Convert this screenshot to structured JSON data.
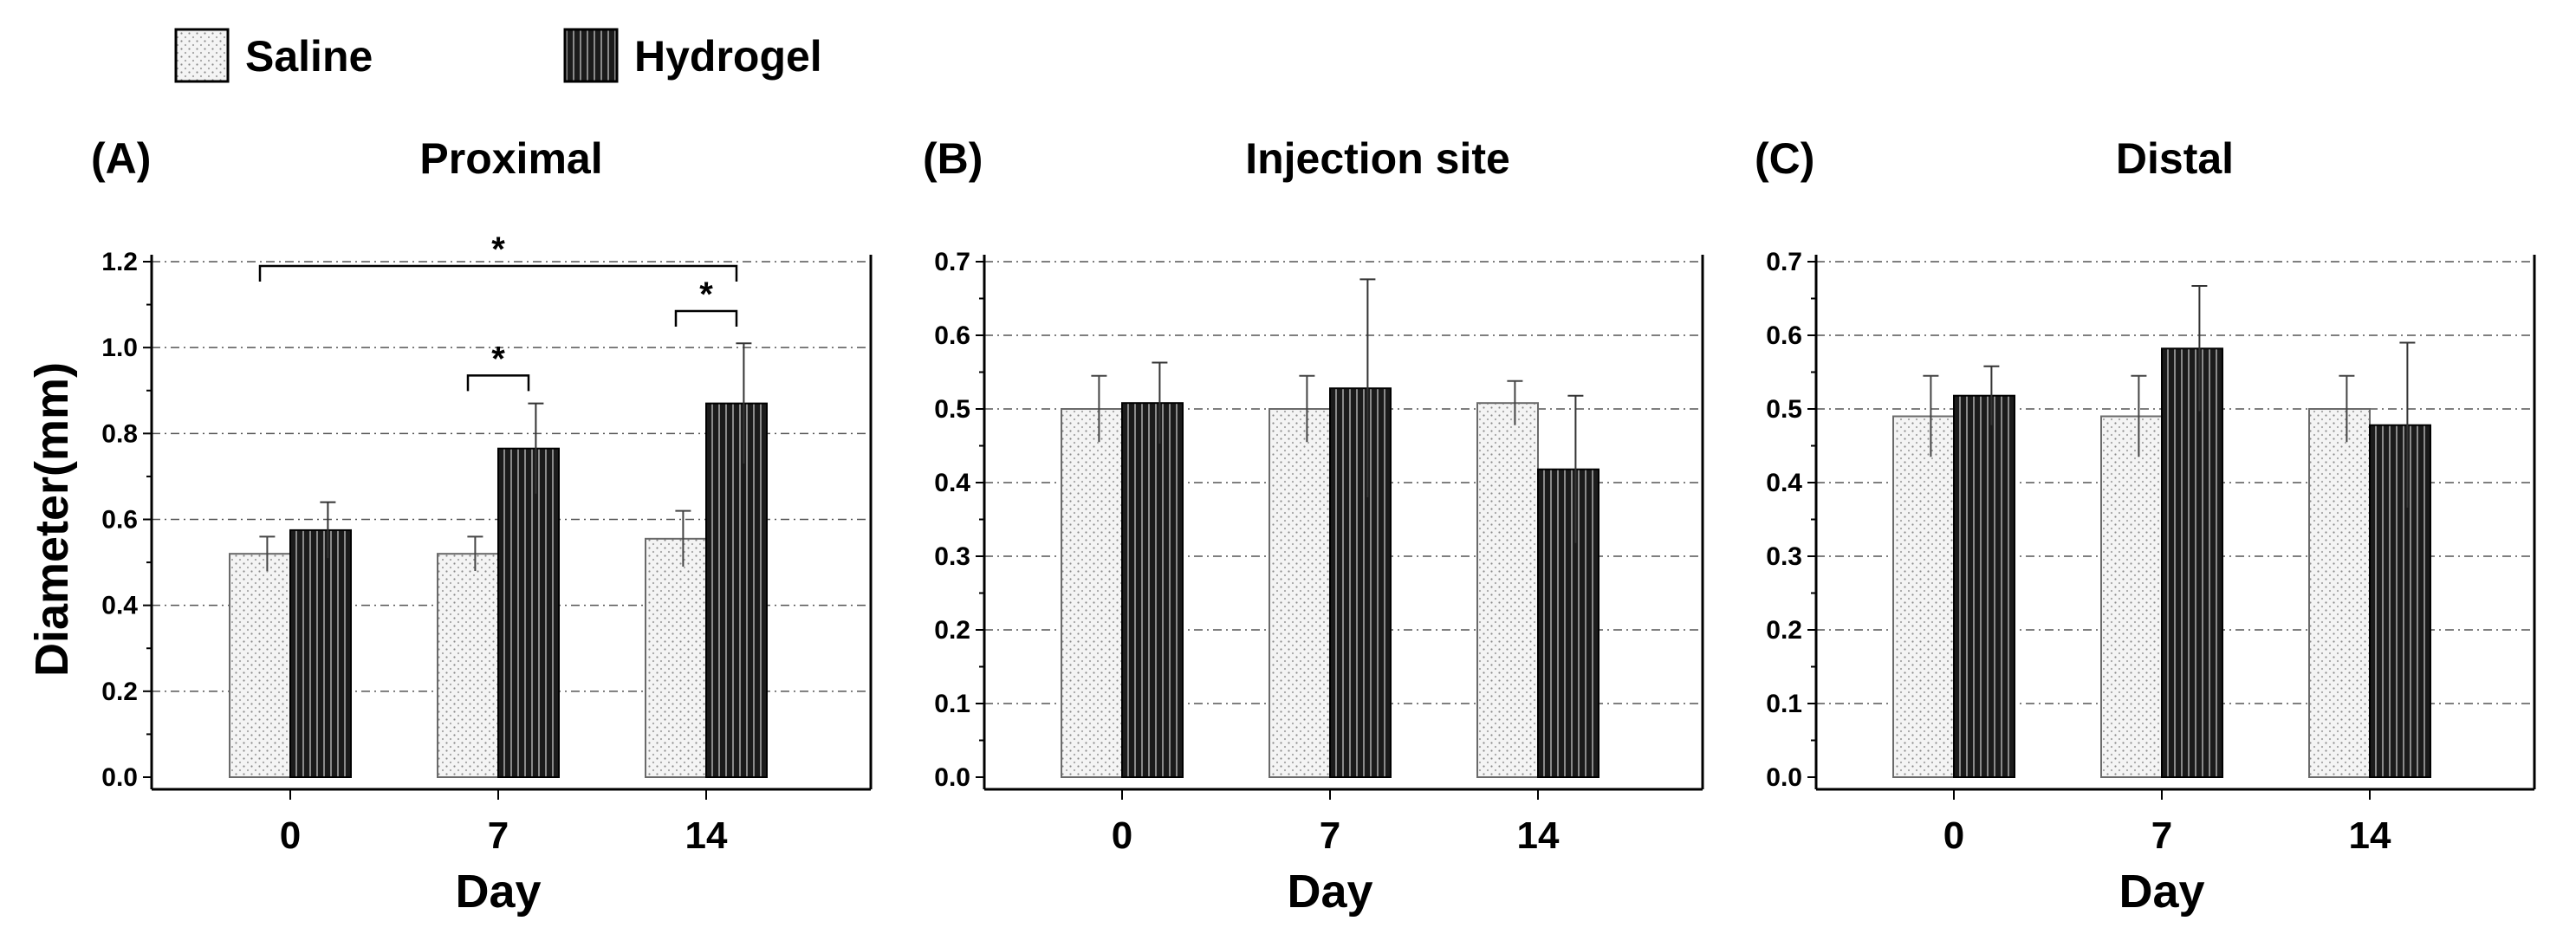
{
  "legend": {
    "saline": "Saline",
    "hydrogel": "Hydrogel"
  },
  "colors": {
    "saline_fill": "#f4f4f4",
    "hydrogel_fill": "#1b1b1b",
    "axis": "#000000",
    "grid": "#555555"
  },
  "chart_data": [
    {
      "panel": "(A)",
      "type": "bar",
      "title": "Proximal",
      "xlabel": "Day",
      "ylabel": "Diameter(mm)",
      "ylim": [
        0,
        1.2
      ],
      "yticks": [
        "0.0",
        "0.2",
        "0.4",
        "0.6",
        "0.8",
        "1.0",
        "1.2"
      ],
      "categories": [
        "0",
        "7",
        "14"
      ],
      "series": [
        {
          "name": "Saline",
          "values": [
            0.52,
            0.52,
            0.555
          ],
          "errors": [
            0.04,
            0.04,
            0.065
          ]
        },
        {
          "name": "Hydrogel",
          "values": [
            0.575,
            0.765,
            0.87
          ],
          "errors": [
            0.065,
            0.105,
            0.14
          ]
        }
      ],
      "annotations": [
        {
          "label": "*",
          "from": [
            0,
            "Saline"
          ],
          "to": [
            2,
            "Hydrogel"
          ],
          "y": 1.19
        },
        {
          "label": "*",
          "from": [
            1,
            "Saline"
          ],
          "to": [
            1,
            "Hydrogel"
          ],
          "y": 0.935
        },
        {
          "label": "*",
          "from": [
            2,
            "Saline"
          ],
          "to": [
            2,
            "Hydrogel"
          ],
          "y": 1.085
        }
      ]
    },
    {
      "panel": "(B)",
      "type": "bar",
      "title": "Injection site",
      "xlabel": "Day",
      "ylabel": "",
      "ylim": [
        0,
        0.7
      ],
      "yticks": [
        "0.0",
        "0.1",
        "0.2",
        "0.3",
        "0.4",
        "0.5",
        "0.6",
        "0.7"
      ],
      "categories": [
        "0",
        "7",
        "14"
      ],
      "series": [
        {
          "name": "Saline",
          "values": [
            0.5,
            0.5,
            0.508
          ],
          "errors": [
            0.045,
            0.045,
            0.03
          ]
        },
        {
          "name": "Hydrogel",
          "values": [
            0.508,
            0.528,
            0.418
          ],
          "errors": [
            0.055,
            0.148,
            0.1
          ]
        }
      ],
      "annotations": []
    },
    {
      "panel": "(C)",
      "type": "bar",
      "title": "Distal",
      "xlabel": "Day",
      "ylabel": "",
      "ylim": [
        0,
        0.7
      ],
      "yticks": [
        "0.0",
        "0.1",
        "0.2",
        "0.3",
        "0.4",
        "0.5",
        "0.6",
        "0.7"
      ],
      "categories": [
        "0",
        "7",
        "14"
      ],
      "series": [
        {
          "name": "Saline",
          "values": [
            0.49,
            0.49,
            0.5
          ],
          "errors": [
            0.055,
            0.055,
            0.045
          ]
        },
        {
          "name": "Hydrogel",
          "values": [
            0.518,
            0.582,
            0.478
          ],
          "errors": [
            0.04,
            0.085,
            0.112
          ]
        }
      ],
      "annotations": []
    }
  ]
}
